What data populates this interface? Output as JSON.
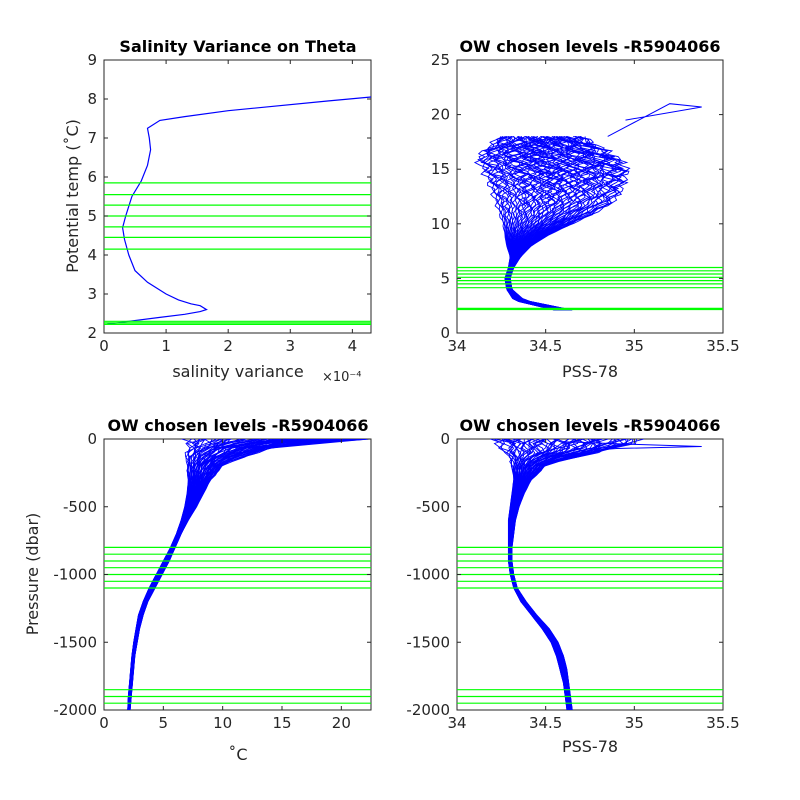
{
  "colors": {
    "profile": "#0000ff",
    "level": "#00ff00",
    "axis": "#262626"
  },
  "chart_data": [
    {
      "type": "line",
      "title": "Salinity Variance on Theta",
      "xlabel": "salinity variance",
      "x_exponent": "×10⁻⁴",
      "ylabel": "Potential temp (˚C)",
      "xlim": [
        0,
        4.3
      ],
      "ylim": [
        2,
        9
      ],
      "xticks": [
        "0",
        "1",
        "2",
        "3",
        "4"
      ],
      "yticks": [
        "2",
        "3",
        "4",
        "5",
        "6",
        "7",
        "8",
        "9"
      ],
      "series": [
        {
          "x": [
            4.3,
            3.6,
            2.0,
            1.3,
            0.9,
            0.7,
            0.73,
            0.75,
            0.7,
            0.6,
            0.45,
            0.35,
            0.3,
            0.33,
            0.4,
            0.5,
            0.7,
            1.0,
            1.2,
            1.4,
            1.55,
            1.65,
            1.55,
            1.3,
            0.9,
            0.4,
            0.05
          ],
          "y": [
            8.05,
            7.95,
            7.7,
            7.55,
            7.45,
            7.25,
            7.0,
            6.7,
            6.3,
            5.9,
            5.5,
            5.0,
            4.7,
            4.4,
            4.0,
            3.6,
            3.3,
            3.0,
            2.85,
            2.75,
            2.7,
            2.6,
            2.55,
            2.48,
            2.4,
            2.3,
            2.22
          ]
        }
      ],
      "levels": [
        2.22,
        2.26,
        2.3,
        4.15,
        4.45,
        4.72,
        5.0,
        5.28,
        5.55,
        5.85
      ]
    },
    {
      "type": "line",
      "title": "OW chosen levels -R5904066",
      "xlabel": "PSS-78",
      "ylabel": "",
      "xlim": [
        34,
        35.5
      ],
      "ylim": [
        0,
        25
      ],
      "xticks": [
        "34",
        "34.5",
        "35",
        "35.5"
      ],
      "yticks": [
        "0",
        "5",
        "10",
        "15",
        "20",
        "25"
      ],
      "envelope": {
        "theta": [
          2.1,
          3,
          4,
          5,
          6,
          7,
          8,
          9,
          10,
          11,
          12,
          13,
          14,
          15,
          16,
          17,
          18
        ],
        "sal_low": [
          34.55,
          34.32,
          34.28,
          34.27,
          34.29,
          34.3,
          34.28,
          34.27,
          34.26,
          34.24,
          34.22,
          34.2,
          34.18,
          34.15,
          34.12,
          34.18,
          34.25
        ],
        "sal_high": [
          34.65,
          34.38,
          34.31,
          34.3,
          34.32,
          34.36,
          34.42,
          34.52,
          34.65,
          34.78,
          34.88,
          34.92,
          34.94,
          34.95,
          34.9,
          34.8,
          34.7
        ]
      },
      "outlier": {
        "x": [
          34.85,
          35.2,
          35.38,
          34.95,
          35.38
        ],
        "y": [
          18.0,
          21.0,
          20.7,
          19.5,
          20.7
        ]
      },
      "levels": [
        2.15,
        2.25,
        4.15,
        4.5,
        4.8,
        5.1,
        5.4,
        5.7,
        6.0
      ]
    },
    {
      "type": "line",
      "title": "OW chosen levels -R5904066",
      "xlabel": "˚C",
      "ylabel": "Pressure (dbar)",
      "xlim": [
        0,
        22.5
      ],
      "ylim": [
        -2000,
        0
      ],
      "xticks": [
        "0",
        "5",
        "10",
        "15",
        "20"
      ],
      "yticks": [
        "-2000",
        "-1500",
        "-1000",
        "-500",
        "0"
      ],
      "envelope": {
        "pressure": [
          0,
          -50,
          -100,
          -150,
          -200,
          -300,
          -400,
          -500,
          -600,
          -700,
          -800,
          -900,
          -1000,
          -1100,
          -1200,
          -1300,
          -1400,
          -1500,
          -1600,
          -1700,
          -1800,
          -1900,
          -2000
        ],
        "t_low": [
          7.5,
          7.2,
          7.0,
          7.0,
          7.0,
          7.1,
          7.0,
          6.8,
          6.5,
          6.1,
          5.6,
          5.0,
          4.4,
          3.8,
          3.3,
          2.9,
          2.7,
          2.5,
          2.35,
          2.25,
          2.15,
          2.05,
          2.0
        ],
        "t_high": [
          22.0,
          15.0,
          13.0,
          11.0,
          10.0,
          9.0,
          8.4,
          7.8,
          7.1,
          6.5,
          6.0,
          5.5,
          4.9,
          4.3,
          3.7,
          3.3,
          3.0,
          2.8,
          2.6,
          2.5,
          2.4,
          2.3,
          2.2
        ]
      },
      "levels": [
        -800,
        -850,
        -900,
        -950,
        -1000,
        -1050,
        -1100,
        -1850,
        -1900,
        -1950
      ]
    },
    {
      "type": "line",
      "title": "OW chosen levels -R5904066",
      "xlabel": "PSS-78",
      "ylabel": "",
      "xlim": [
        34,
        35.5
      ],
      "ylim": [
        -2000,
        0
      ],
      "xticks": [
        "34",
        "34.5",
        "35",
        "35.5"
      ],
      "yticks": [
        "-2000",
        "-1500",
        "-1000",
        "-500",
        "0"
      ],
      "envelope": {
        "pressure": [
          0,
          -50,
          -100,
          -150,
          -200,
          -300,
          -400,
          -500,
          -600,
          -700,
          -800,
          -900,
          -1000,
          -1100,
          -1200,
          -1300,
          -1400,
          -1500,
          -1600,
          -1700,
          -1800,
          -1900,
          -2000
        ],
        "s_low": [
          34.2,
          34.25,
          34.28,
          34.3,
          34.31,
          34.32,
          34.31,
          34.3,
          34.29,
          34.29,
          34.29,
          34.29,
          34.3,
          34.32,
          34.36,
          34.42,
          34.48,
          34.53,
          34.56,
          34.58,
          34.6,
          34.61,
          34.62
        ],
        "s_high": [
          35.0,
          34.95,
          34.8,
          34.6,
          34.5,
          34.42,
          34.38,
          34.35,
          34.33,
          34.32,
          34.31,
          34.31,
          34.32,
          34.34,
          34.39,
          34.45,
          34.52,
          34.57,
          34.6,
          34.62,
          34.63,
          34.64,
          34.65
        ]
      },
      "outlier": {
        "x": [
          34.6,
          35.0,
          35.38,
          34.9,
          34.7
        ],
        "y": [
          -20,
          -40,
          -55,
          -70,
          -90
        ]
      },
      "levels": [
        -800,
        -850,
        -900,
        -950,
        -1000,
        -1050,
        -1100,
        -1850,
        -1900,
        -1950
      ]
    }
  ]
}
